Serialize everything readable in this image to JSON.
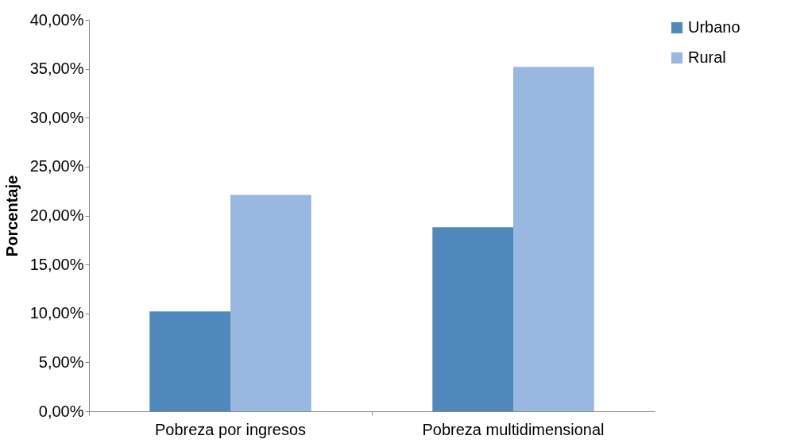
{
  "chart_data": {
    "type": "bar",
    "ylabel": "Porcentaje",
    "categories": [
      "Pobreza por ingresos",
      "Pobreza multidimensional"
    ],
    "series": [
      {
        "name": "Urbano",
        "color": "#4f88bb",
        "values": [
          10.2,
          18.8
        ]
      },
      {
        "name": "Rural",
        "color": "#98b8df",
        "values": [
          22.1,
          35.2
        ]
      }
    ],
    "ylim": [
      0,
      40
    ],
    "yticks": [
      {
        "value": 0,
        "label": "0,00%"
      },
      {
        "value": 5,
        "label": "5,00%"
      },
      {
        "value": 10,
        "label": "10,00%"
      },
      {
        "value": 15,
        "label": "15,00%"
      },
      {
        "value": 20,
        "label": "20,00%"
      },
      {
        "value": 25,
        "label": "25,00%"
      },
      {
        "value": 30,
        "label": "30,00%"
      },
      {
        "value": 35,
        "label": "35,00%"
      },
      {
        "value": 40,
        "label": "40,00%"
      }
    ],
    "grid": false,
    "legend": "right"
  }
}
